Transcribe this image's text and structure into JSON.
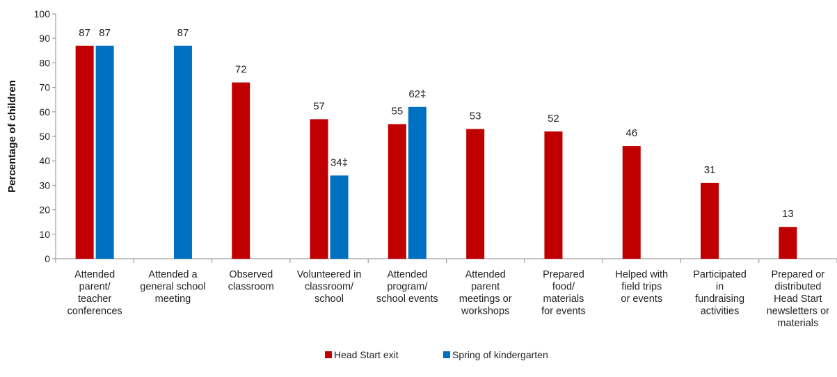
{
  "chart_data": {
    "type": "bar",
    "title": "",
    "xlabel": "",
    "ylabel": "Percentage of children",
    "ylim": [
      0,
      100
    ],
    "yticks": [
      0,
      10,
      20,
      30,
      40,
      50,
      60,
      70,
      80,
      90,
      100
    ],
    "grid": false,
    "legend_position": "bottom",
    "categories": [
      [
        "Attended",
        "parent/",
        "teacher",
        "conferences"
      ],
      [
        "Attended a",
        "general school",
        "meeting"
      ],
      [
        "Observed",
        "classroom"
      ],
      [
        "Volunteered in",
        "classroom/",
        "school"
      ],
      [
        "Attended",
        "program/",
        "school events"
      ],
      [
        "Attended",
        "parent",
        "meetings or",
        "workshops"
      ],
      [
        "Prepared",
        "food/",
        "materials",
        "for events"
      ],
      [
        "Helped with",
        "field trips",
        "or events"
      ],
      [
        "Participated",
        "in",
        "fundraising",
        "activities"
      ],
      [
        "Prepared or",
        "distributed",
        "Head Start",
        "newsletters or",
        "materials"
      ]
    ],
    "series": [
      {
        "name": "Head Start exit",
        "color": "#C00000",
        "values": [
          87,
          null,
          72,
          57,
          55,
          53,
          52,
          46,
          31,
          13
        ],
        "labels": [
          "87",
          null,
          "72",
          "57",
          "55",
          "53",
          "52",
          "46",
          "31",
          "13"
        ]
      },
      {
        "name": "Spring of kindergarten",
        "color": "#0070C0",
        "values": [
          87,
          87,
          null,
          34,
          62,
          null,
          null,
          null,
          null,
          null
        ],
        "labels": [
          "87",
          "87",
          null,
          "34‡",
          "62‡",
          null,
          null,
          null,
          null,
          null
        ]
      }
    ]
  }
}
